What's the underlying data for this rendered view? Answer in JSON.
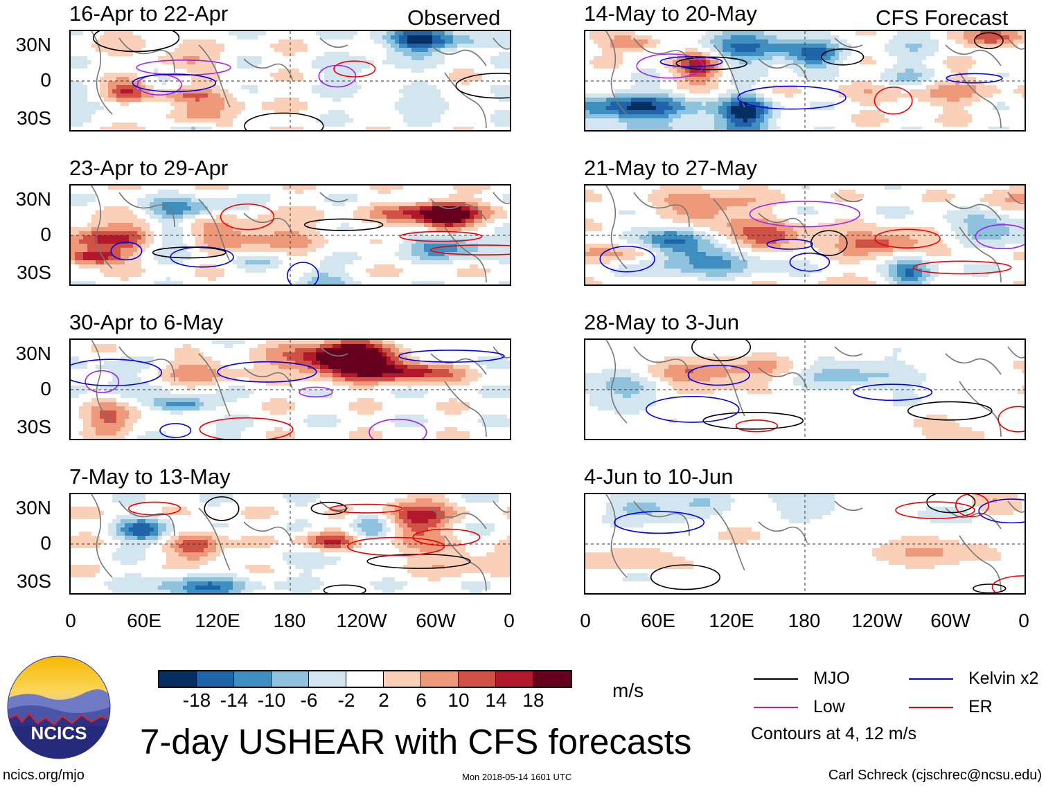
{
  "header": {
    "observed_label": "Observed",
    "forecast_label": "CFS Forecast"
  },
  "panels_left": [
    {
      "title": "16-Apr to 22-Apr"
    },
    {
      "title": "23-Apr to 29-Apr"
    },
    {
      "title": "30-Apr to 6-May"
    },
    {
      "title": "7-May to 13-May"
    }
  ],
  "panels_right": [
    {
      "title": "14-May to 20-May"
    },
    {
      "title": "21-May to 27-May"
    },
    {
      "title": "28-May to 3-Jun"
    },
    {
      "title": "4-Jun to 10-Jun"
    }
  ],
  "axes": {
    "lat_labels": [
      "30N",
      "0",
      "30S"
    ],
    "lon_labels": [
      "0",
      "60E",
      "120E",
      "180",
      "120W",
      "60W",
      "0"
    ]
  },
  "colorbar": {
    "unit": "m/s",
    "tick_labels": [
      "-18",
      "-14",
      "-10",
      "-6",
      "-2",
      "2",
      "6",
      "10",
      "14",
      "18"
    ],
    "colors": [
      "#053061",
      "#1f63a8",
      "#3f8ec0",
      "#8fc3dd",
      "#d3e6f0",
      "#ffffff",
      "#fbd0b9",
      "#ee9a7a",
      "#d05246",
      "#b2182b",
      "#67001f"
    ]
  },
  "legend": {
    "items": [
      {
        "label": "MJO",
        "color": "#000000"
      },
      {
        "label": "Kelvin x2",
        "color": "#0000ee"
      },
      {
        "label": "Low",
        "color": "#a020f0"
      },
      {
        "label": "ER",
        "color": "#ee0000"
      }
    ],
    "note": "Contours at 4, 12 m/s"
  },
  "logo": {
    "text": "NCICS"
  },
  "main_title": "7-day USHEAR with CFS forecasts",
  "footer": {
    "url": "ncics.org/mjo",
    "timestamp": "Mon 2018-05-14 1601 UTC",
    "credit": "Carl Schreck (cjschrec@ncsu.edu)"
  }
}
